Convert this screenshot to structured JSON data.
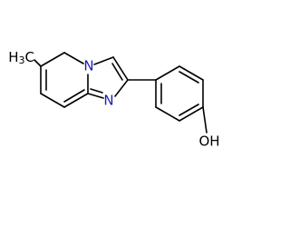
{
  "atoms": {
    "methyl": {
      "h": "H",
      "count": "3",
      "c": "C"
    },
    "n_bridge": "N",
    "n_ring": "N",
    "hydroxyl": "OH"
  }
}
